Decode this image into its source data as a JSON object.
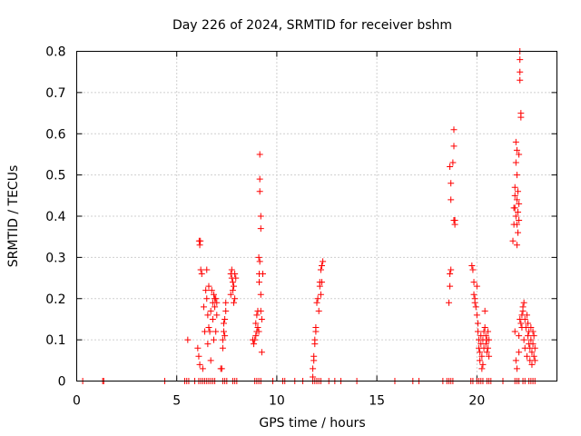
{
  "chart_data": {
    "type": "scatter",
    "title": "Day 226 of 2024, SRMTID for receiver bshm",
    "xlabel": "GPS time / hours",
    "ylabel": "SRMTID / TECUs",
    "xlim": [
      0,
      24
    ],
    "ylim": [
      0,
      0.8
    ],
    "x_ticks": [
      0,
      5,
      10,
      15,
      20
    ],
    "x_tick_labels": [
      "0",
      "5",
      "10",
      "15",
      "20"
    ],
    "y_ticks": [
      0,
      0.1,
      0.2,
      0.3,
      0.4,
      0.5,
      0.6,
      0.7,
      0.8
    ],
    "y_tick_labels": [
      "0",
      "0.1",
      "0.2",
      "0.3",
      "0.4",
      "0.5",
      "0.6",
      "0.7",
      "0.8"
    ],
    "grid": true,
    "marker": "+",
    "color": "#ff0000",
    "series": [
      {
        "name": "SRMTID",
        "points": [
          [
            0.3,
            0
          ],
          [
            1.3,
            0
          ],
          [
            1.35,
            0
          ],
          [
            4.4,
            0
          ],
          [
            5.4,
            0
          ],
          [
            5.5,
            0
          ],
          [
            5.6,
            0
          ],
          [
            5.9,
            0
          ],
          [
            6.1,
            0
          ],
          [
            6.2,
            0
          ],
          [
            6.3,
            0
          ],
          [
            6.4,
            0
          ],
          [
            6.5,
            0
          ],
          [
            6.6,
            0
          ],
          [
            6.7,
            0
          ],
          [
            6.8,
            0
          ],
          [
            6.9,
            0
          ],
          [
            7.3,
            0
          ],
          [
            7.4,
            0
          ],
          [
            7.5,
            0
          ],
          [
            7.8,
            0
          ],
          [
            7.9,
            0
          ],
          [
            8.0,
            0
          ],
          [
            8.9,
            0
          ],
          [
            9.0,
            0
          ],
          [
            9.1,
            0
          ],
          [
            9.2,
            0
          ],
          [
            9.8,
            0
          ],
          [
            10.3,
            0
          ],
          [
            10.4,
            0
          ],
          [
            10.9,
            0
          ],
          [
            11.3,
            0
          ],
          [
            11.8,
            0
          ],
          [
            11.9,
            0
          ],
          [
            12.0,
            0
          ],
          [
            12.1,
            0
          ],
          [
            12.2,
            0
          ],
          [
            12.6,
            0
          ],
          [
            12.9,
            0
          ],
          [
            13.2,
            0
          ],
          [
            14.0,
            0
          ],
          [
            15.9,
            0
          ],
          [
            16.8,
            0
          ],
          [
            17.1,
            0
          ],
          [
            18.3,
            0
          ],
          [
            18.5,
            0
          ],
          [
            18.6,
            0
          ],
          [
            18.7,
            0
          ],
          [
            18.8,
            0
          ],
          [
            19.7,
            0
          ],
          [
            19.8,
            0
          ],
          [
            20.0,
            0
          ],
          [
            20.1,
            0
          ],
          [
            20.2,
            0
          ],
          [
            20.3,
            0
          ],
          [
            20.5,
            0
          ],
          [
            20.6,
            0
          ],
          [
            20.7,
            0
          ],
          [
            21.3,
            0
          ],
          [
            21.9,
            0
          ],
          [
            22.0,
            0
          ],
          [
            22.1,
            0
          ],
          [
            22.3,
            0
          ],
          [
            22.4,
            0
          ],
          [
            22.6,
            0
          ],
          [
            22.7,
            0
          ],
          [
            22.8,
            0
          ],
          [
            22.9,
            0
          ],
          [
            5.55,
            0.1
          ],
          [
            6.05,
            0.08
          ],
          [
            6.1,
            0.06
          ],
          [
            6.15,
            0.04
          ],
          [
            6.12,
            0.34
          ],
          [
            6.18,
            0.34
          ],
          [
            6.15,
            0.33
          ],
          [
            6.2,
            0.27
          ],
          [
            6.25,
            0.26
          ],
          [
            6.3,
            0.03
          ],
          [
            6.35,
            0.18
          ],
          [
            6.4,
            0.12
          ],
          [
            6.45,
            0.22
          ],
          [
            6.5,
            0.27
          ],
          [
            6.5,
            0.2
          ],
          [
            6.55,
            0.16
          ],
          [
            6.55,
            0.09
          ],
          [
            6.6,
            0.13
          ],
          [
            6.6,
            0.23
          ],
          [
            6.65,
            0.12
          ],
          [
            6.7,
            0.17
          ],
          [
            6.7,
            0.05
          ],
          [
            6.75,
            0.22
          ],
          [
            6.8,
            0.19
          ],
          [
            6.8,
            0.15
          ],
          [
            6.85,
            0.21
          ],
          [
            6.85,
            0.1
          ],
          [
            6.9,
            0.2
          ],
          [
            6.9,
            0.18
          ],
          [
            6.95,
            0.2
          ],
          [
            6.95,
            0.12
          ],
          [
            7.0,
            0.19
          ],
          [
            7.0,
            0.16
          ],
          [
            7.2,
            0.03
          ],
          [
            7.25,
            0.03
          ],
          [
            7.3,
            0.08
          ],
          [
            7.3,
            0.1
          ],
          [
            7.35,
            0.12
          ],
          [
            7.35,
            0.14
          ],
          [
            7.4,
            0.11
          ],
          [
            7.4,
            0.15
          ],
          [
            7.45,
            0.17
          ],
          [
            7.45,
            0.19
          ],
          [
            7.7,
            0.26
          ],
          [
            7.7,
            0.21
          ],
          [
            7.75,
            0.25
          ],
          [
            7.75,
            0.27
          ],
          [
            7.8,
            0.24
          ],
          [
            7.8,
            0.22
          ],
          [
            7.85,
            0.19
          ],
          [
            7.85,
            0.23
          ],
          [
            7.9,
            0.2
          ],
          [
            7.9,
            0.26
          ],
          [
            7.95,
            0.25
          ],
          [
            8.8,
            0.1
          ],
          [
            8.85,
            0.09
          ],
          [
            8.9,
            0.1
          ],
          [
            8.95,
            0.11
          ],
          [
            8.95,
            0.14
          ],
          [
            9.0,
            0.12
          ],
          [
            9.0,
            0.16
          ],
          [
            9.05,
            0.13
          ],
          [
            9.05,
            0.17
          ],
          [
            9.1,
            0.12
          ],
          [
            9.1,
            0.3
          ],
          [
            9.12,
            0.26
          ],
          [
            9.12,
            0.24
          ],
          [
            9.15,
            0.29
          ],
          [
            9.15,
            0.55
          ],
          [
            9.15,
            0.49
          ],
          [
            9.15,
            0.46
          ],
          [
            9.2,
            0.4
          ],
          [
            9.2,
            0.37
          ],
          [
            9.2,
            0.21
          ],
          [
            9.2,
            0.17
          ],
          [
            9.25,
            0.15
          ],
          [
            9.25,
            0.07
          ],
          [
            9.3,
            0.26
          ],
          [
            11.8,
            0.01
          ],
          [
            11.8,
            0.03
          ],
          [
            11.85,
            0.05
          ],
          [
            11.85,
            0.06
          ],
          [
            11.9,
            0.09
          ],
          [
            11.9,
            0.1
          ],
          [
            11.95,
            0.12
          ],
          [
            11.95,
            0.13
          ],
          [
            12.0,
            0.19
          ],
          [
            12.05,
            0.2
          ],
          [
            12.1,
            0.17
          ],
          [
            12.15,
            0.23
          ],
          [
            12.15,
            0.24
          ],
          [
            12.2,
            0.21
          ],
          [
            12.2,
            0.27
          ],
          [
            12.25,
            0.24
          ],
          [
            12.25,
            0.28
          ],
          [
            12.3,
            0.29
          ],
          [
            18.6,
            0.19
          ],
          [
            18.65,
            0.23
          ],
          [
            18.65,
            0.26
          ],
          [
            18.7,
            0.27
          ],
          [
            18.65,
            0.52
          ],
          [
            18.7,
            0.48
          ],
          [
            18.7,
            0.44
          ],
          [
            18.8,
            0.53
          ],
          [
            18.85,
            0.61
          ],
          [
            18.85,
            0.57
          ],
          [
            18.85,
            0.39
          ],
          [
            18.9,
            0.38
          ],
          [
            18.9,
            0.39
          ],
          [
            19.75,
            0.28
          ],
          [
            19.8,
            0.27
          ],
          [
            19.85,
            0.24
          ],
          [
            19.85,
            0.21
          ],
          [
            19.9,
            0.19
          ],
          [
            19.9,
            0.2
          ],
          [
            19.95,
            0.18
          ],
          [
            20.0,
            0.23
          ],
          [
            20.0,
            0.16
          ],
          [
            20.05,
            0.14
          ],
          [
            20.05,
            0.12
          ],
          [
            20.1,
            0.1
          ],
          [
            20.1,
            0.08
          ],
          [
            20.15,
            0.07
          ],
          [
            20.15,
            0.05
          ],
          [
            20.2,
            0.09
          ],
          [
            20.2,
            0.11
          ],
          [
            20.25,
            0.06
          ],
          [
            20.25,
            0.03
          ],
          [
            20.3,
            0.04
          ],
          [
            20.3,
            0.1
          ],
          [
            20.35,
            0.08
          ],
          [
            20.35,
            0.12
          ],
          [
            20.4,
            0.17
          ],
          [
            20.4,
            0.13
          ],
          [
            20.45,
            0.11
          ],
          [
            20.45,
            0.09
          ],
          [
            20.5,
            0.07
          ],
          [
            20.5,
            0.1
          ],
          [
            20.55,
            0.12
          ],
          [
            20.55,
            0.08
          ],
          [
            20.6,
            0.1
          ],
          [
            20.6,
            0.06
          ],
          [
            21.8,
            0.34
          ],
          [
            21.85,
            0.38
          ],
          [
            21.85,
            0.42
          ],
          [
            21.9,
            0.45
          ],
          [
            21.9,
            0.47
          ],
          [
            21.9,
            0.42
          ],
          [
            21.95,
            0.53
          ],
          [
            21.95,
            0.58
          ],
          [
            21.95,
            0.4
          ],
          [
            22.0,
            0.56
          ],
          [
            22.0,
            0.5
          ],
          [
            22.0,
            0.44
          ],
          [
            22.0,
            0.38
          ],
          [
            22.0,
            0.33
          ],
          [
            22.05,
            0.46
          ],
          [
            22.05,
            0.41
          ],
          [
            22.05,
            0.36
          ],
          [
            22.1,
            0.43
          ],
          [
            22.1,
            0.39
          ],
          [
            22.1,
            0.55
          ],
          [
            22.15,
            0.8
          ],
          [
            22.15,
            0.78
          ],
          [
            22.15,
            0.75
          ],
          [
            22.15,
            0.73
          ],
          [
            22.2,
            0.65
          ],
          [
            22.2,
            0.64
          ],
          [
            21.9,
            0.12
          ],
          [
            21.95,
            0.05
          ],
          [
            22.0,
            0.03
          ],
          [
            22.1,
            0.11
          ],
          [
            22.1,
            0.07
          ],
          [
            22.15,
            0.15
          ],
          [
            22.2,
            0.14
          ],
          [
            22.25,
            0.16
          ],
          [
            22.25,
            0.13
          ],
          [
            22.3,
            0.17
          ],
          [
            22.3,
            0.18
          ],
          [
            22.35,
            0.19
          ],
          [
            22.35,
            0.1
          ],
          [
            22.4,
            0.15
          ],
          [
            22.4,
            0.08
          ],
          [
            22.45,
            0.13
          ],
          [
            22.5,
            0.16
          ],
          [
            22.5,
            0.06
          ],
          [
            22.55,
            0.14
          ],
          [
            22.55,
            0.11
          ],
          [
            22.6,
            0.09
          ],
          [
            22.6,
            0.12
          ],
          [
            22.65,
            0.05
          ],
          [
            22.65,
            0.08
          ],
          [
            22.7,
            0.13
          ],
          [
            22.7,
            0.1
          ],
          [
            22.75,
            0.07
          ],
          [
            22.75,
            0.04
          ],
          [
            22.8,
            0.09
          ],
          [
            22.8,
            0.12
          ],
          [
            22.85,
            0.06
          ],
          [
            22.85,
            0.11
          ],
          [
            22.9,
            0.08
          ],
          [
            22.9,
            0.05
          ]
        ]
      }
    ]
  }
}
